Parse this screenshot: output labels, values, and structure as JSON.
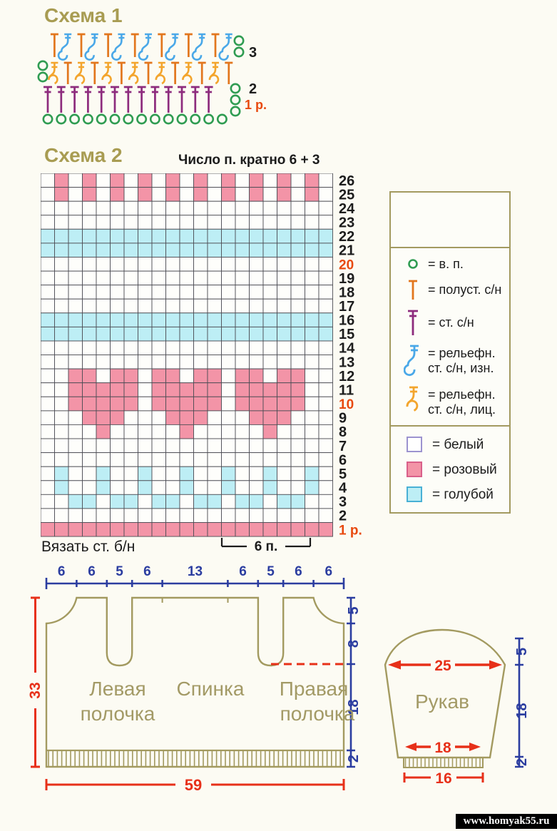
{
  "schema1": {
    "title": "Схема 1",
    "row_labels": [
      {
        "text": "3",
        "red": false
      },
      {
        "text": "2",
        "red": false
      },
      {
        "text": "1 р.",
        "red": true
      }
    ],
    "counts": {
      "chain": 14,
      "dc": 13,
      "row2": 14,
      "row3": 14
    }
  },
  "schema2": {
    "title": "Схема 2",
    "caption": "Число п. кратно 6 + 3",
    "footnote": "Вязать ст. б/н",
    "repeat_label": "6 п.",
    "cols": 21,
    "rows": [
      {
        "num": "26",
        "red": false,
        "cells": ".P.P.P.P.P.P.P.P.P.P."
      },
      {
        "num": "25",
        "red": false,
        "cells": ".P.P.P.P.P.P.P.P.P.P."
      },
      {
        "num": "24",
        "red": false,
        "cells": "....................."
      },
      {
        "num": "23",
        "red": false,
        "cells": "....................."
      },
      {
        "num": "22",
        "red": false,
        "cells": "BBBBBBBBBBBBBBBBBBBBB"
      },
      {
        "num": "21",
        "red": false,
        "cells": "BBBBBBBBBBBBBBBBBBBBB"
      },
      {
        "num": "20",
        "red": true,
        "cells": "....................."
      },
      {
        "num": "19",
        "red": false,
        "cells": "....................."
      },
      {
        "num": "18",
        "red": false,
        "cells": "....................."
      },
      {
        "num": "17",
        "red": false,
        "cells": "....................."
      },
      {
        "num": "16",
        "red": false,
        "cells": "BBBBBBBBBBBBBBBBBBBBB"
      },
      {
        "num": "15",
        "red": false,
        "cells": "BBBBBBBBBBBBBBBBBBBBB"
      },
      {
        "num": "14",
        "red": false,
        "cells": "....................."
      },
      {
        "num": "13",
        "red": false,
        "cells": "....................."
      },
      {
        "num": "12",
        "red": false,
        "cells": "..PP.PP.PP.PP.PP.PP.."
      },
      {
        "num": "11",
        "red": false,
        "cells": "..PPPPP.PPPPP.PPPPP.."
      },
      {
        "num": "10",
        "red": true,
        "cells": "..PPPPP.PPPPP.PPPPP.."
      },
      {
        "num": "9",
        "red": false,
        "cells": "...PPP...PPP...PPP..."
      },
      {
        "num": "8",
        "red": false,
        "cells": "....P.....P.....P...."
      },
      {
        "num": "7",
        "red": false,
        "cells": "....................."
      },
      {
        "num": "6",
        "red": false,
        "cells": "....................."
      },
      {
        "num": "5",
        "red": false,
        "cells": ".B..B..B..B..B..B..B."
      },
      {
        "num": "4",
        "red": false,
        "cells": ".B..B..B..B..B..B..B."
      },
      {
        "num": "3",
        "red": false,
        "cells": "..BB.BB.BB.BB.BB.BB.."
      },
      {
        "num": "2",
        "red": false,
        "cells": "....................."
      },
      {
        "num": "1 р.",
        "red": true,
        "cells": "PPPPPPPPPPPPPPPPPPPPP"
      }
    ]
  },
  "legend": {
    "symbols": [
      {
        "icon": "chain-circle-icon",
        "lines": [
          "= в. п."
        ]
      },
      {
        "icon": "half-double-crochet-icon",
        "lines": [
          "= полуст. с/н"
        ]
      },
      {
        "icon": "double-crochet-icon",
        "lines": [
          "= ст. с/н"
        ]
      },
      {
        "icon": "relief-back-icon",
        "lines": [
          "= рельефн.",
          "ст. с/н, изн."
        ]
      },
      {
        "icon": "relief-front-icon",
        "lines": [
          "= рельефн.",
          "ст. с/н, лиц."
        ]
      }
    ],
    "colors": [
      {
        "swatch": "white",
        "label": "= белый"
      },
      {
        "swatch": "pink",
        "label": "= розовый"
      },
      {
        "swatch": "blue",
        "label": "= голубой"
      }
    ]
  },
  "body_diagram": {
    "top_widths": [
      "6",
      "6",
      "5",
      "6",
      "13",
      "6",
      "5",
      "6",
      "6"
    ],
    "left_height": "33",
    "right_heights": [
      "5",
      "8",
      "18",
      "2"
    ],
    "bottom_width": "59",
    "labels": {
      "left": [
        "Левая",
        "полочка"
      ],
      "center": [
        "Спинка"
      ],
      "right": [
        "Правая",
        "полочка"
      ]
    }
  },
  "sleeve_diagram": {
    "label": "Рукав",
    "top_width": "25",
    "lower_width": "18",
    "cuff_width": "16",
    "right_heights": [
      "5",
      "18",
      "2"
    ]
  },
  "watermark": "www.homyak55.ru",
  "colors": {
    "pink": "#f394a7",
    "pink_border": "#d9608a",
    "light_blue": "#bdeef5",
    "blue_border": "#49b0d5",
    "white_border": "#9c93cf",
    "olive": "#a89c52",
    "outline": "#a39a60",
    "red": "#e73019",
    "label_red": "#e8490f",
    "dim_blue": "#2b3da0",
    "green": "#2f9c52",
    "orange": "#e2761d",
    "amber": "#f3a52d",
    "purple": "#8d2b7d",
    "grid_line": "#4d4d55",
    "text": "#1c1c1c"
  }
}
